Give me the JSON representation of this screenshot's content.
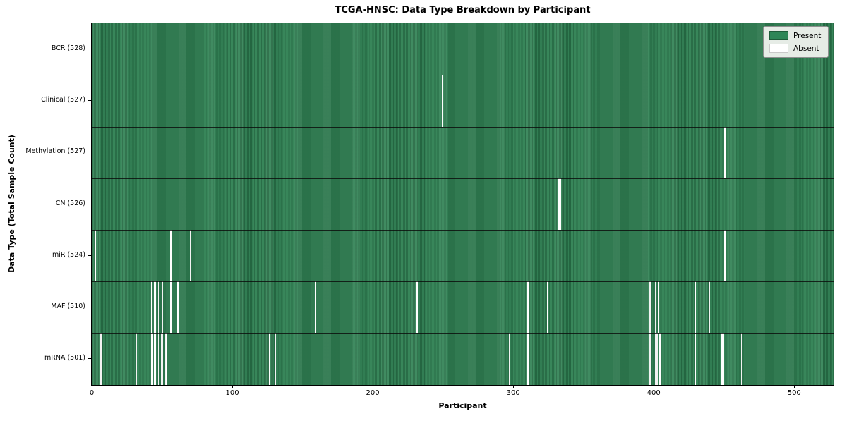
{
  "chart_data": {
    "type": "heatmap",
    "title": "TCGA-HNSC: Data Type Breakdown by Participant",
    "xlabel": "Participant",
    "ylabel": "Data Type (Total Sample Count)",
    "xlim": [
      0,
      528
    ],
    "x_ticks": [
      0,
      100,
      200,
      300,
      400,
      500
    ],
    "grid": false,
    "legend_position": "upper right",
    "legend": [
      {
        "label": "Present",
        "color": "#2e8657"
      },
      {
        "label": "Absent",
        "color": "#ffffff"
      }
    ],
    "colors": {
      "stripe_light": "#348457",
      "stripe_dark": "#266b44",
      "absent": "#ffffff",
      "frame": "#000000",
      "legend_bg": "#e6ece6"
    },
    "rows": [
      {
        "label": "BCR (528)",
        "data_type": "BCR",
        "present_count": 528,
        "absent_count": 0,
        "absent_at": []
      },
      {
        "label": "Clinical (527)",
        "data_type": "Clinical",
        "present_count": 527,
        "absent_count": 1,
        "absent_at": [
          249
        ]
      },
      {
        "label": "Methylation (527)",
        "data_type": "Methylation",
        "present_count": 527,
        "absent_count": 1,
        "absent_at": [
          450
        ]
      },
      {
        "label": "CN (526)",
        "data_type": "CN",
        "present_count": 526,
        "absent_count": 2,
        "absent_at": [
          332,
          333
        ]
      },
      {
        "label": "miR (524)",
        "data_type": "miR",
        "present_count": 524,
        "absent_count": 4,
        "absent_at": [
          2,
          56,
          70,
          450
        ]
      },
      {
        "label": "MAF (510)",
        "data_type": "MAF",
        "present_count": 510,
        "absent_count": 18,
        "absent_at": [
          42,
          44,
          45,
          47,
          48,
          50,
          51,
          56,
          61,
          159,
          231,
          310,
          324,
          397,
          401,
          403,
          429,
          439
        ]
      },
      {
        "label": "mRNA (501)",
        "data_type": "mRNA",
        "present_count": 501,
        "absent_count": 27,
        "absent_at": [
          6,
          31,
          42,
          43,
          44,
          45,
          46,
          47,
          48,
          49,
          50,
          52,
          53,
          126,
          130,
          157,
          297,
          310,
          397,
          401,
          402,
          404,
          429,
          448,
          449,
          462,
          463
        ]
      }
    ]
  }
}
